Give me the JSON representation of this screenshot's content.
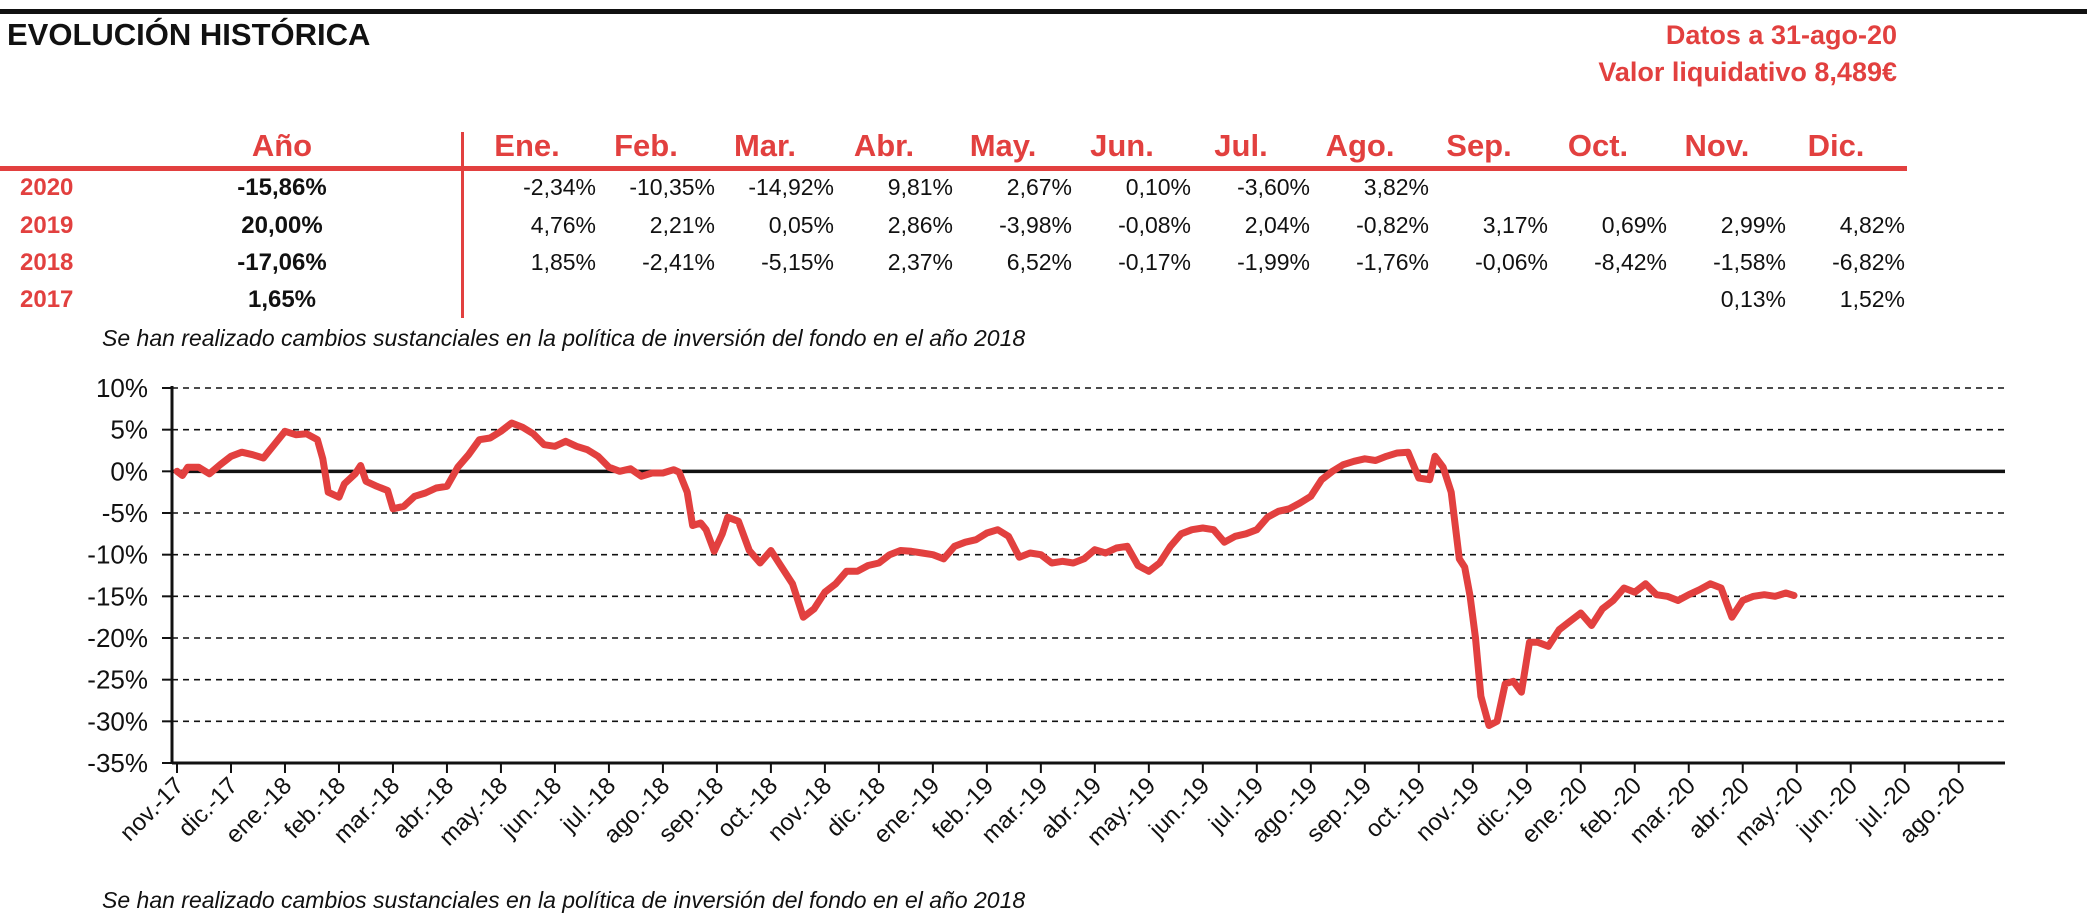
{
  "header": {
    "title": "EVOLUCIÓN HISTÓRICA",
    "datos": "Datos a 31-ago-20",
    "valor": "Valor liquidativo 8,489€"
  },
  "colors": {
    "accent": "#e2403f",
    "text": "#111111",
    "grid": "#111111"
  },
  "performance": {
    "year_header": "Año",
    "months": [
      "Ene.",
      "Feb.",
      "Mar.",
      "Abr.",
      "May.",
      "Jun.",
      "Jul.",
      "Ago.",
      "Sep.",
      "Oct.",
      "Nov.",
      "Dic."
    ],
    "rows": [
      {
        "year": "2020",
        "total": "-15,86%",
        "values": [
          "-2,34%",
          "-10,35%",
          "-14,92%",
          "9,81%",
          "2,67%",
          "0,10%",
          "-3,60%",
          "3,82%",
          "",
          "",
          "",
          ""
        ]
      },
      {
        "year": "2019",
        "total": "20,00%",
        "values": [
          "4,76%",
          "2,21%",
          "0,05%",
          "2,86%",
          "-3,98%",
          "-0,08%",
          "2,04%",
          "-0,82%",
          "3,17%",
          "0,69%",
          "2,99%",
          "4,82%"
        ]
      },
      {
        "year": "2018",
        "total": "-17,06%",
        "values": [
          "1,85%",
          "-2,41%",
          "-5,15%",
          "2,37%",
          "6,52%",
          "-0,17%",
          "-1,99%",
          "-1,76%",
          "-0,06%",
          "-8,42%",
          "-1,58%",
          "-6,82%"
        ]
      },
      {
        "year": "2017",
        "total": "1,65%",
        "values": [
          "",
          "",
          "",
          "",
          "",
          "",
          "",
          "",
          "",
          "",
          "0,13%",
          "1,52%"
        ]
      }
    ]
  },
  "notes": {
    "top": "Se han realizado cambios sustanciales en la política de inversión del fondo en el año 2018",
    "bottom": "Se han realizado cambios sustanciales en la política de inversión del fondo en el año 2018"
  },
  "chart_data": {
    "type": "line",
    "title": "",
    "xlabel": "",
    "ylabel": "",
    "ylim": [
      -35,
      10
    ],
    "yticks": [
      10,
      5,
      0,
      -5,
      -10,
      -15,
      -20,
      -25,
      -30,
      -35
    ],
    "ytick_labels": [
      "10%",
      "5%",
      "0%",
      "-5%",
      "-10%",
      "-15%",
      "-20%",
      "-25%",
      "-30%",
      "-35%"
    ],
    "grid": "horizontal dashed",
    "x_categories": [
      "nov.-17",
      "dic.-17",
      "ene.-18",
      "feb.-18",
      "mar.-18",
      "abr.-18",
      "may.-18",
      "jun.-18",
      "jul.-18",
      "ago.-18",
      "sep.-18",
      "oct.-18",
      "nov.-18",
      "dic.-18",
      "ene.-19",
      "feb.-19",
      "mar.-19",
      "abr.-19",
      "may.-19",
      "jun.-19",
      "jul.-19",
      "ago.-19",
      "sep.-19",
      "oct.-19",
      "nov.-19",
      "dic.-19",
      "ene.-20",
      "feb.-20",
      "mar.-20",
      "abr.-20",
      "may.-20",
      "jun.-20",
      "jul.-20",
      "ago.-20"
    ],
    "series": [
      {
        "color": "#e2403f",
        "points": [
          [
            0.0,
            0.0
          ],
          [
            0.1,
            -0.5
          ],
          [
            0.2,
            0.5
          ],
          [
            0.4,
            0.5
          ],
          [
            0.6,
            -0.3
          ],
          [
            0.8,
            0.8
          ],
          [
            1.0,
            1.8
          ],
          [
            1.2,
            2.3
          ],
          [
            1.4,
            2.0
          ],
          [
            1.6,
            1.6
          ],
          [
            1.8,
            3.2
          ],
          [
            2.0,
            4.8
          ],
          [
            2.2,
            4.4
          ],
          [
            2.4,
            4.5
          ],
          [
            2.6,
            3.8
          ],
          [
            2.7,
            1.5
          ],
          [
            2.8,
            -2.5
          ],
          [
            3.0,
            -3.1
          ],
          [
            3.1,
            -1.5
          ],
          [
            3.3,
            -0.3
          ],
          [
            3.4,
            0.7
          ],
          [
            3.5,
            -1.2
          ],
          [
            3.7,
            -1.8
          ],
          [
            3.9,
            -2.3
          ],
          [
            4.0,
            -4.5
          ],
          [
            4.2,
            -4.2
          ],
          [
            4.4,
            -3.0
          ],
          [
            4.6,
            -2.6
          ],
          [
            4.8,
            -2.0
          ],
          [
            5.0,
            -1.8
          ],
          [
            5.2,
            0.5
          ],
          [
            5.4,
            2.0
          ],
          [
            5.6,
            3.8
          ],
          [
            5.8,
            4.0
          ],
          [
            6.0,
            4.8
          ],
          [
            6.2,
            5.8
          ],
          [
            6.4,
            5.3
          ],
          [
            6.6,
            4.5
          ],
          [
            6.8,
            3.2
          ],
          [
            7.0,
            3.0
          ],
          [
            7.2,
            3.6
          ],
          [
            7.4,
            3.0
          ],
          [
            7.6,
            2.6
          ],
          [
            7.8,
            1.8
          ],
          [
            8.0,
            0.5
          ],
          [
            8.2,
            0.0
          ],
          [
            8.4,
            0.3
          ],
          [
            8.6,
            -0.6
          ],
          [
            8.8,
            -0.2
          ],
          [
            9.0,
            -0.2
          ],
          [
            9.2,
            0.2
          ],
          [
            9.3,
            -0.1
          ],
          [
            9.45,
            -2.5
          ],
          [
            9.55,
            -6.5
          ],
          [
            9.7,
            -6.2
          ],
          [
            9.8,
            -7.0
          ],
          [
            9.95,
            -9.6
          ],
          [
            10.1,
            -7.5
          ],
          [
            10.2,
            -5.5
          ],
          [
            10.4,
            -6.0
          ],
          [
            10.6,
            -9.5
          ],
          [
            10.8,
            -11.0
          ],
          [
            11.0,
            -9.5
          ],
          [
            11.2,
            -11.5
          ],
          [
            11.4,
            -13.5
          ],
          [
            11.6,
            -17.5
          ],
          [
            11.8,
            -16.5
          ],
          [
            12.0,
            -14.5
          ],
          [
            12.2,
            -13.5
          ],
          [
            12.4,
            -12.0
          ],
          [
            12.6,
            -12.0
          ],
          [
            12.8,
            -11.3
          ],
          [
            13.0,
            -11.0
          ],
          [
            13.2,
            -10.0
          ],
          [
            13.4,
            -9.5
          ],
          [
            13.6,
            -9.6
          ],
          [
            13.8,
            -9.8
          ],
          [
            14.0,
            -10.0
          ],
          [
            14.2,
            -10.5
          ],
          [
            14.4,
            -9.0
          ],
          [
            14.6,
            -8.5
          ],
          [
            14.8,
            -8.2
          ],
          [
            15.0,
            -7.4
          ],
          [
            15.2,
            -7.0
          ],
          [
            15.4,
            -7.8
          ],
          [
            15.6,
            -10.3
          ],
          [
            15.8,
            -9.8
          ],
          [
            16.0,
            -10.0
          ],
          [
            16.2,
            -11.0
          ],
          [
            16.4,
            -10.8
          ],
          [
            16.6,
            -11.0
          ],
          [
            16.8,
            -10.5
          ],
          [
            17.0,
            -9.4
          ],
          [
            17.2,
            -9.8
          ],
          [
            17.4,
            -9.2
          ],
          [
            17.6,
            -9.0
          ],
          [
            17.8,
            -11.3
          ],
          [
            18.0,
            -12.0
          ],
          [
            18.2,
            -11.0
          ],
          [
            18.4,
            -9.0
          ],
          [
            18.6,
            -7.5
          ],
          [
            18.8,
            -7.0
          ],
          [
            19.0,
            -6.8
          ],
          [
            19.2,
            -7.0
          ],
          [
            19.4,
            -8.5
          ],
          [
            19.6,
            -7.8
          ],
          [
            19.8,
            -7.5
          ],
          [
            20.0,
            -7.0
          ],
          [
            20.2,
            -5.5
          ],
          [
            20.4,
            -4.8
          ],
          [
            20.6,
            -4.5
          ],
          [
            20.8,
            -3.8
          ],
          [
            21.0,
            -3.0
          ],
          [
            21.2,
            -1.0
          ],
          [
            21.4,
            0.0
          ],
          [
            21.6,
            0.8
          ],
          [
            21.8,
            1.2
          ],
          [
            22.0,
            1.5
          ],
          [
            22.2,
            1.3
          ],
          [
            22.4,
            1.8
          ],
          [
            22.6,
            2.2
          ],
          [
            22.8,
            2.3
          ],
          [
            23.0,
            -0.8
          ],
          [
            23.2,
            -1.0
          ],
          [
            23.3,
            1.8
          ],
          [
            23.45,
            0.5
          ],
          [
            23.6,
            -2.5
          ],
          [
            23.75,
            -10.5
          ],
          [
            23.85,
            -11.5
          ],
          [
            23.95,
            -15.0
          ],
          [
            24.05,
            -20.0
          ],
          [
            24.15,
            -27.0
          ],
          [
            24.3,
            -30.5
          ],
          [
            24.45,
            -30.0
          ],
          [
            24.6,
            -25.5
          ],
          [
            24.75,
            -25.2
          ],
          [
            24.9,
            -26.5
          ],
          [
            25.05,
            -20.5
          ],
          [
            25.2,
            -20.5
          ],
          [
            25.4,
            -21.0
          ],
          [
            25.6,
            -19.0
          ],
          [
            25.8,
            -18.0
          ],
          [
            26.0,
            -17.0
          ],
          [
            26.2,
            -18.5
          ],
          [
            26.4,
            -16.5
          ],
          [
            26.6,
            -15.5
          ],
          [
            26.8,
            -14.0
          ],
          [
            27.0,
            -14.5
          ],
          [
            27.2,
            -13.5
          ],
          [
            27.4,
            -14.8
          ],
          [
            27.6,
            -15.0
          ],
          [
            27.8,
            -15.5
          ],
          [
            28.0,
            -14.8
          ],
          [
            28.2,
            -14.2
          ],
          [
            28.4,
            -13.5
          ],
          [
            28.6,
            -14.0
          ],
          [
            28.8,
            -17.5
          ],
          [
            29.0,
            -15.5
          ],
          [
            29.2,
            -15.0
          ],
          [
            29.4,
            -14.8
          ],
          [
            29.6,
            -15.0
          ],
          [
            29.8,
            -14.6
          ],
          [
            29.95,
            -14.9
          ]
        ]
      }
    ]
  }
}
